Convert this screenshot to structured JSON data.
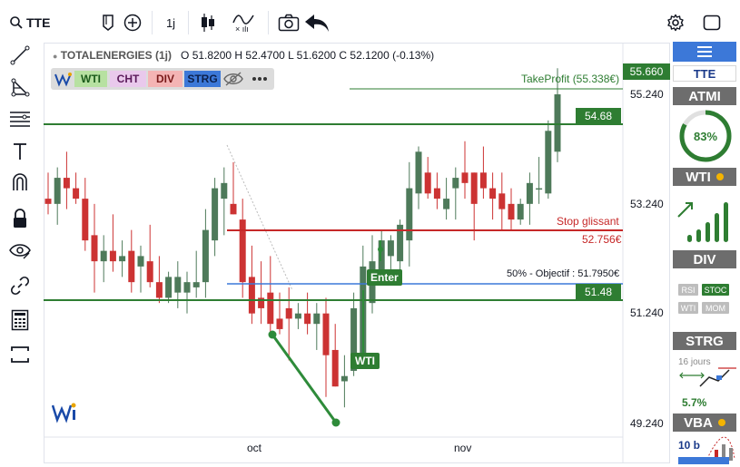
{
  "toolbar": {
    "symbol": "TTE",
    "timeframe": "1j"
  },
  "legend": {
    "name": "TOTALENERGIES (1j)",
    "ohlc": "O 51.8200 H 52.4700 L 51.6200 C 52.1200 (-0.13%)"
  },
  "indicator_buttons": [
    {
      "label": "WTI",
      "bg": "#b7e1a1",
      "fg": "#1a5a1a"
    },
    {
      "label": "CHT",
      "bg": "#e9c9ec",
      "fg": "#5a1a5a"
    },
    {
      "label": "DIV",
      "bg": "#f4b4b4",
      "fg": "#7a1a1a"
    },
    {
      "label": "STRG",
      "bg": "#3c78d8",
      "fg": "#0b1f4a"
    }
  ],
  "price_axis": {
    "labels": [
      "55.660",
      "55.240",
      "53.240",
      "51.240",
      "49.240"
    ],
    "current": "55.660"
  },
  "date_axis": [
    "oct",
    "nov"
  ],
  "levels": {
    "resistance": "54.68",
    "support": "51.48",
    "take_profit": "TakeProfit (55.338€)",
    "stop_label": "Stop glissant",
    "stop_value": "52.756€",
    "objective": "50% - Objectif : 51.7950€"
  },
  "annotations": {
    "enter": "Enter",
    "wti": "WTI"
  },
  "right_panel": {
    "symbol": "TTE",
    "atmi": {
      "title": "ATMI",
      "value": "83%",
      "fraction": 0.83
    },
    "wti": {
      "title": "WTI"
    },
    "div": {
      "title": "DIV",
      "chips": [
        "RSI",
        "STOC",
        "WTI",
        "MOM"
      ]
    },
    "strg": {
      "title": "STRG",
      "days": "16 jours",
      "pct": "5.7%"
    },
    "vba": {
      "title": "VBA",
      "bars": "10 b"
    }
  },
  "chart_data": {
    "type": "candlestick",
    "title": "TOTALENERGIES (1j)",
    "ylim": [
      48.9,
      56.2
    ],
    "candles": [
      {
        "o": 53.4,
        "h": 53.9,
        "l": 53.1,
        "c": 53.3
      },
      {
        "o": 53.3,
        "h": 54.0,
        "l": 52.9,
        "c": 53.8
      },
      {
        "o": 53.8,
        "h": 54.3,
        "l": 53.2,
        "c": 53.6
      },
      {
        "o": 53.6,
        "h": 53.9,
        "l": 53.3,
        "c": 53.4
      },
      {
        "o": 53.4,
        "h": 53.8,
        "l": 52.4,
        "c": 52.6
      },
      {
        "o": 52.7,
        "h": 53.3,
        "l": 51.6,
        "c": 52.2
      },
      {
        "o": 52.2,
        "h": 52.7,
        "l": 51.8,
        "c": 52.4
      },
      {
        "o": 52.4,
        "h": 53.1,
        "l": 52.0,
        "c": 52.2
      },
      {
        "o": 52.2,
        "h": 52.6,
        "l": 51.9,
        "c": 52.3
      },
      {
        "o": 52.4,
        "h": 52.8,
        "l": 51.6,
        "c": 51.8
      },
      {
        "o": 52.1,
        "h": 52.5,
        "l": 51.6,
        "c": 52.3
      },
      {
        "o": 52.2,
        "h": 52.9,
        "l": 51.7,
        "c": 51.8
      },
      {
        "o": 51.8,
        "h": 52.3,
        "l": 51.4,
        "c": 51.5
      },
      {
        "o": 51.5,
        "h": 52.0,
        "l": 51.4,
        "c": 51.9
      },
      {
        "o": 51.6,
        "h": 52.2,
        "l": 51.3,
        "c": 51.9
      },
      {
        "o": 51.6,
        "h": 52.0,
        "l": 51.2,
        "c": 51.8
      },
      {
        "o": 51.7,
        "h": 52.4,
        "l": 51.5,
        "c": 51.8
      },
      {
        "o": 51.8,
        "h": 53.2,
        "l": 51.5,
        "c": 52.8
      },
      {
        "o": 52.6,
        "h": 53.8,
        "l": 52.3,
        "c": 53.6
      },
      {
        "o": 53.4,
        "h": 54.0,
        "l": 52.7,
        "c": 53.7
      },
      {
        "o": 53.3,
        "h": 54.1,
        "l": 53.1,
        "c": 53.1
      },
      {
        "o": 53.0,
        "h": 53.4,
        "l": 51.5,
        "c": 51.8
      },
      {
        "o": 51.9,
        "h": 52.5,
        "l": 51.0,
        "c": 51.2
      },
      {
        "o": 51.5,
        "h": 52.2,
        "l": 51.0,
        "c": 51.3
      },
      {
        "o": 51.6,
        "h": 52.3,
        "l": 50.8,
        "c": 51.0
      },
      {
        "o": 51.1,
        "h": 51.6,
        "l": 50.8,
        "c": 50.9
      },
      {
        "o": 51.3,
        "h": 51.7,
        "l": 50.3,
        "c": 51.1
      },
      {
        "o": 51.1,
        "h": 51.4,
        "l": 50.9,
        "c": 51.2
      },
      {
        "o": 51.2,
        "h": 51.6,
        "l": 50.8,
        "c": 51.0
      },
      {
        "o": 51.0,
        "h": 51.4,
        "l": 50.5,
        "c": 51.2
      },
      {
        "o": 51.2,
        "h": 51.5,
        "l": 49.6,
        "c": 50.4
      },
      {
        "o": 50.5,
        "h": 51.0,
        "l": 49.8,
        "c": 49.8
      },
      {
        "o": 49.9,
        "h": 50.4,
        "l": 49.4,
        "c": 50.0
      },
      {
        "o": 50.1,
        "h": 51.6,
        "l": 50.0,
        "c": 51.3
      },
      {
        "o": 50.3,
        "h": 52.5,
        "l": 50.2,
        "c": 52.1
      },
      {
        "o": 51.4,
        "h": 52.7,
        "l": 51.2,
        "c": 52.2
      },
      {
        "o": 52.0,
        "h": 52.8,
        "l": 51.8,
        "c": 52.6
      },
      {
        "o": 52.3,
        "h": 52.7,
        "l": 51.8,
        "c": 52.6
      },
      {
        "o": 52.2,
        "h": 53.0,
        "l": 52.0,
        "c": 52.9
      },
      {
        "o": 52.6,
        "h": 54.1,
        "l": 52.1,
        "c": 53.6
      },
      {
        "o": 53.5,
        "h": 54.4,
        "l": 53.2,
        "c": 54.3
      },
      {
        "o": 53.9,
        "h": 54.2,
        "l": 53.4,
        "c": 53.5
      },
      {
        "o": 53.6,
        "h": 53.9,
        "l": 53.2,
        "c": 53.4
      },
      {
        "o": 53.2,
        "h": 53.8,
        "l": 53.0,
        "c": 53.4
      },
      {
        "o": 53.6,
        "h": 54.0,
        "l": 53.0,
        "c": 53.8
      },
      {
        "o": 53.9,
        "h": 54.5,
        "l": 53.4,
        "c": 53.7
      },
      {
        "o": 53.9,
        "h": 53.9,
        "l": 52.6,
        "c": 53.3
      },
      {
        "o": 53.9,
        "h": 54.4,
        "l": 53.4,
        "c": 53.6
      },
      {
        "o": 53.6,
        "h": 53.9,
        "l": 53.0,
        "c": 53.4
      },
      {
        "o": 53.5,
        "h": 53.9,
        "l": 52.8,
        "c": 53.2
      },
      {
        "o": 53.3,
        "h": 53.6,
        "l": 52.8,
        "c": 53.0
      },
      {
        "o": 53.0,
        "h": 53.4,
        "l": 52.9,
        "c": 53.3
      },
      {
        "o": 53.3,
        "h": 53.9,
        "l": 52.9,
        "c": 53.7
      },
      {
        "o": 53.6,
        "h": 54.2,
        "l": 53.3,
        "c": 53.6
      },
      {
        "o": 53.5,
        "h": 54.9,
        "l": 53.4,
        "c": 54.7
      },
      {
        "o": 54.3,
        "h": 55.9,
        "l": 54.1,
        "c": 55.4
      }
    ]
  }
}
